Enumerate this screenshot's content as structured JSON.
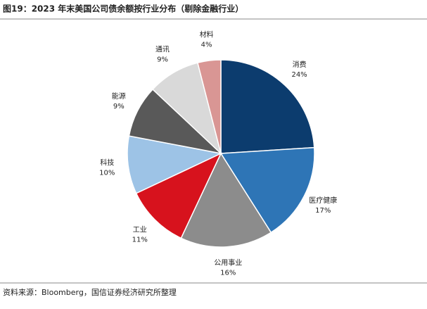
{
  "chart_data": {
    "type": "pie",
    "title": "图19：2023 年末美国公司债余额按行业分布（剔除金融行业）",
    "categories": [
      "消费",
      "医疗健康",
      "公用事业",
      "工业",
      "科技",
      "能源",
      "通讯",
      "材料"
    ],
    "values": [
      24,
      17,
      16,
      11,
      10,
      9,
      9,
      4
    ],
    "value_labels": [
      "24%",
      "17%",
      "16%",
      "11%",
      "10%",
      "9%",
      "9%",
      "4%"
    ],
    "colors": [
      "#0c3c6e",
      "#2e75b6",
      "#8c8c8c",
      "#d7121d",
      "#9dc3e6",
      "#595959",
      "#d9d9d9",
      "#d99694"
    ],
    "source": "资料来源：Bloomberg，国信证券经济研究所整理"
  }
}
